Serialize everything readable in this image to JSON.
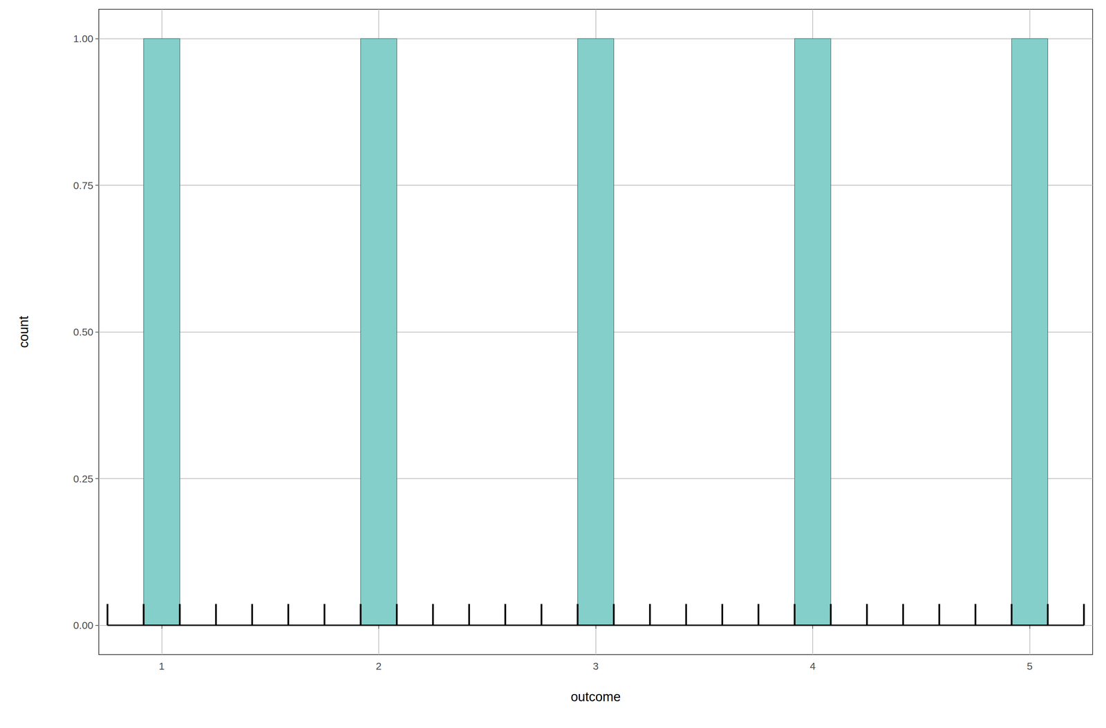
{
  "chart_data": {
    "type": "histogram",
    "x_label": "outcome",
    "y_label": "count",
    "bins": [
      0.75,
      0.9167,
      1.0833,
      1.25,
      1.4167,
      1.5833,
      1.75,
      1.9167,
      2.0833,
      2.25,
      2.4167,
      2.5833,
      2.75,
      2.9167,
      3.0833,
      3.25,
      3.4167,
      3.5833,
      3.75,
      3.9167,
      4.0833,
      4.25,
      4.4167,
      4.5833,
      4.75,
      4.9167,
      5.0833,
      5.25
    ],
    "values": [
      0,
      1,
      0,
      0,
      0,
      0,
      0,
      1,
      0,
      0,
      0,
      0,
      0,
      1,
      0,
      0,
      0,
      0,
      0,
      1,
      0,
      0,
      0,
      0,
      0,
      1,
      0
    ],
    "color": "#84cfca",
    "xlim": [
      0.71,
      5.29
    ],
    "xticks": [
      1,
      2,
      3,
      4,
      5
    ],
    "ylim": [
      -0.05,
      1.05
    ],
    "yticks": [
      {
        "value": 0,
        "label": "0.00"
      },
      {
        "value": 0.25,
        "label": "0.25"
      },
      {
        "value": 0.5,
        "label": "0.50"
      },
      {
        "value": 0.75,
        "label": "0.75"
      },
      {
        "value": 1,
        "label": "1.00"
      }
    ],
    "grid": true
  }
}
